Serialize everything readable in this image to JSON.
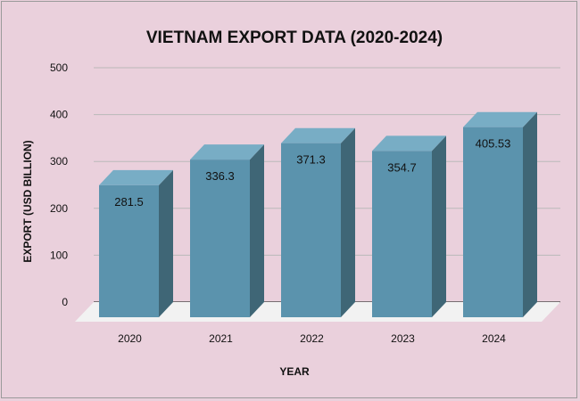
{
  "chart_data": {
    "type": "bar",
    "title": "VIETNAM EXPORT DATA (2020-2024)",
    "xlabel": "YEAR",
    "ylabel": "EXPORT (USD BILLION)",
    "categories": [
      "2020",
      "2021",
      "2022",
      "2023",
      "2024"
    ],
    "values": [
      281.5,
      336.3,
      371.3,
      354.7,
      405.53
    ],
    "value_labels": [
      "281.5",
      "336.3",
      "371.3",
      "354.7",
      "405.53"
    ],
    "ylim": [
      0,
      500
    ],
    "yticks": [
      0,
      100,
      200,
      300,
      400,
      500
    ],
    "grid": true,
    "legend": "none",
    "colors": {
      "background": "#ead0dc",
      "bar_front": "#5b93ad",
      "bar_top": "#78adc5",
      "bar_side": "#3f6676",
      "floor": "#f2f2f2",
      "grid": "#b9b9b9"
    }
  }
}
